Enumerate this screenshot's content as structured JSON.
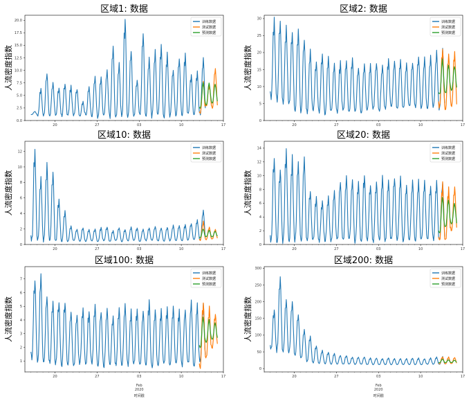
{
  "figure": {
    "ylabel": "人流密度指数",
    "x_month_label": "Feb",
    "x_year_label": "2020",
    "x_axis_label": "时间戳",
    "legend": [
      "训练数据",
      "测试数据",
      "预测数据"
    ],
    "colors": {
      "train": "#1f77b4",
      "test": "#ff7f0e",
      "pred": "#2ca02c"
    }
  },
  "chart_data": [
    {
      "type": "line",
      "title": "区域1: 数据",
      "xticks": [
        "20",
        "27",
        "03",
        "10",
        "17"
      ],
      "yticks": [
        "0.0",
        "2.5",
        "5.0",
        "7.5",
        "10.0",
        "12.5",
        "15.0",
        "17.5",
        "20.0"
      ],
      "ylim": [
        0,
        21
      ],
      "x_range_days": [
        "2020-01-15",
        "2020-02-17"
      ],
      "series": [
        {
          "name": "训练数据",
          "period": "2020-01-16 to 2020-02-13",
          "daily_peaks": [
            1.8,
            6.5,
            9.8,
            7.8,
            6.8,
            7.6,
            7.0,
            6.5,
            3.8,
            6.8,
            8.8,
            9.0,
            10.3,
            15.0,
            11.6,
            20.8,
            14.5,
            8.5,
            17.8,
            12.6,
            14.0,
            15.6,
            13.8,
            10.5,
            12.8,
            13.8,
            9.5,
            10.0,
            13.0
          ],
          "daily_troughs": [
            1.2,
            1.0,
            1.0,
            1.1,
            1.2,
            1.0,
            1.0,
            1.1,
            0.9,
            1.0,
            0.8,
            0.7,
            0.9,
            0.8,
            0.6,
            0.7,
            0.8,
            0.9,
            1.0,
            1.0,
            0.9,
            0.8,
            0.9,
            1.0,
            1.2,
            1.1,
            1.2,
            1.0,
            1.2
          ]
        },
        {
          "name": "测试数据",
          "period": "2020-02-13 to 2020-02-16",
          "daily_peaks": [
            8.0,
            7.2,
            10.8
          ],
          "daily_troughs": [
            1.5,
            2.8,
            2.5
          ]
        },
        {
          "name": "预测数据",
          "period": "2020-02-13 to 2020-02-16",
          "daily_peaks": [
            7.5,
            7.5,
            7.3
          ],
          "daily_troughs": [
            2.5,
            3.2,
            3.5
          ]
        }
      ]
    },
    {
      "type": "line",
      "title": "区域2: 数据",
      "xticks": [
        "20",
        "27",
        "03",
        "10",
        "17"
      ],
      "yticks": [
        "0",
        "5",
        "10",
        "15",
        "20",
        "25",
        "30"
      ],
      "ylim": [
        0,
        31
      ],
      "x_range_days": [
        "2020-01-15",
        "2020-02-17"
      ],
      "series": [
        {
          "name": "训练数据",
          "period": "2020-01-16 to 2020-02-13",
          "daily_peaks": [
            30.5,
            29.5,
            28.0,
            26.5,
            27.0,
            25.0,
            21.0,
            17.5,
            20.0,
            19.0,
            17.0,
            17.5,
            18.0,
            18.5,
            16.0,
            17.5,
            17.0,
            17.5,
            16.5,
            18.5,
            18.0,
            18.0,
            17.0,
            17.5,
            19.5,
            18.5,
            19.5,
            20.5,
            21.0
          ],
          "daily_troughs": [
            6.5,
            6.0,
            5.5,
            4.5,
            3.5,
            3.0,
            2.5,
            3.0,
            2.5,
            2.0,
            2.5,
            2.5,
            3.0,
            2.5,
            3.0,
            2.5,
            3.0,
            3.5,
            3.0,
            3.5,
            4.0,
            3.5,
            3.5,
            4.0,
            4.0,
            3.5,
            4.0,
            4.0,
            3.5
          ]
        },
        {
          "name": "测试数据",
          "period": "2020-02-13 to 2020-02-16",
          "daily_peaks": [
            21.5,
            20.0,
            20.5
          ],
          "daily_troughs": [
            4.0,
            3.5,
            4.0
          ]
        },
        {
          "name": "预测数据",
          "period": "2020-02-13 to 2020-02-16",
          "daily_peaks": [
            18.0,
            16.5,
            16.0
          ],
          "daily_troughs": [
            7.5,
            8.0,
            9.0
          ]
        }
      ]
    },
    {
      "type": "line",
      "title": "区域10: 数据",
      "xticks": [
        "20",
        "27",
        "03",
        "10",
        "17"
      ],
      "yticks": [
        "0",
        "2",
        "4",
        "6",
        "8",
        "10",
        "12"
      ],
      "ylim": [
        0,
        13.3
      ],
      "x_range_days": [
        "2020-01-15",
        "2020-02-17"
      ],
      "series": [
        {
          "name": "训练数据",
          "period": "2020-01-16 to 2020-02-13",
          "daily_peaks": [
            12.8,
            9.0,
            10.5,
            9.5,
            6.0,
            4.5,
            2.5,
            2.0,
            2.2,
            2.0,
            2.0,
            2.2,
            2.3,
            1.8,
            2.2,
            2.0,
            2.3,
            2.2,
            2.0,
            2.2,
            2.4,
            2.2,
            2.3,
            2.5,
            2.5,
            2.6,
            2.8,
            3.2,
            4.5
          ],
          "daily_troughs": [
            0.6,
            0.5,
            0.6,
            0.5,
            0.5,
            0.4,
            0.4,
            0.5,
            0.4,
            0.4,
            0.5,
            0.4,
            0.5,
            0.4,
            0.5,
            0.4,
            0.5,
            0.5,
            0.4,
            0.5,
            0.5,
            0.5,
            0.4,
            0.5,
            0.5,
            0.5,
            0.6,
            0.6,
            0.6
          ]
        },
        {
          "name": "测试数据",
          "period": "2020-02-13 to 2020-02-16",
          "daily_peaks": [
            3.0,
            2.3,
            2.0
          ],
          "daily_troughs": [
            0.5,
            0.6,
            0.7
          ]
        },
        {
          "name": "预测数据",
          "period": "2020-02-13 to 2020-02-16",
          "daily_peaks": [
            2.0,
            1.8,
            1.7
          ],
          "daily_troughs": [
            0.9,
            1.0,
            1.0
          ]
        }
      ]
    },
    {
      "type": "line",
      "title": "区域20: 数据",
      "xticks": [
        "20",
        "27",
        "03",
        "10",
        "17"
      ],
      "yticks": [
        "0",
        "2",
        "4",
        "6",
        "8",
        "10",
        "12",
        "14"
      ],
      "ylim": [
        0,
        15
      ],
      "x_range_days": [
        "2020-01-15",
        "2020-02-17"
      ],
      "series": [
        {
          "name": "训练数据",
          "period": "2020-01-16 to 2020-02-13",
          "daily_peaks": [
            13.0,
            11.5,
            14.5,
            13.0,
            12.5,
            13.0,
            8.0,
            7.0,
            6.5,
            7.0,
            8.0,
            9.5,
            10.0,
            10.0,
            9.5,
            10.5,
            9.0,
            9.5,
            10.0,
            9.5,
            10.0,
            10.0,
            9.0,
            9.5,
            9.5,
            9.5,
            9.0,
            9.5,
            9.5
          ],
          "daily_troughs": [
            0.7,
            0.5,
            0.6,
            0.5,
            0.6,
            0.5,
            0.5,
            0.6,
            0.5,
            0.6,
            0.5,
            0.6,
            0.5,
            0.6,
            0.5,
            0.5,
            0.6,
            0.5,
            0.6,
            0.6,
            0.6,
            0.6,
            0.5,
            0.6,
            0.6,
            0.6,
            0.6,
            0.7,
            0.7
          ]
        },
        {
          "name": "测试数据",
          "period": "2020-02-13 to 2020-02-16",
          "daily_peaks": [
            9.0,
            8.5,
            8.5
          ],
          "daily_troughs": [
            0.6,
            0.5,
            2.0
          ]
        },
        {
          "name": "预测数据",
          "period": "2020-02-13 to 2020-02-16",
          "daily_peaks": [
            7.0,
            6.5,
            6.0
          ],
          "daily_troughs": [
            1.5,
            2.5,
            3.0
          ]
        }
      ]
    },
    {
      "type": "line",
      "title": "区域100: 数据",
      "xticks": [
        "20",
        "27",
        "03",
        "10",
        "17"
      ],
      "yticks": [
        "1",
        "2",
        "3",
        "4",
        "5",
        "6",
        "7"
      ],
      "ylim": [
        0.2,
        7.9
      ],
      "x_range_days": [
        "2020-01-15",
        "2020-02-17"
      ],
      "series": [
        {
          "name": "训练数据",
          "period": "2020-01-16 to 2020-02-13",
          "daily_peaks": [
            7.2,
            7.5,
            6.0,
            5.5,
            5.5,
            5.5,
            4.8,
            4.5,
            5.0,
            4.8,
            5.2,
            4.8,
            5.0,
            4.5,
            5.0,
            5.2,
            4.8,
            5.0,
            4.8,
            5.5,
            5.0,
            4.8,
            5.0,
            5.2,
            4.8,
            5.0,
            5.5,
            5.2,
            5.3
          ],
          "daily_troughs": [
            1.2,
            0.9,
            0.8,
            0.9,
            0.8,
            0.7,
            0.8,
            0.7,
            0.8,
            0.7,
            0.8,
            0.7,
            0.6,
            0.8,
            0.7,
            0.8,
            0.7,
            0.8,
            0.7,
            0.8,
            0.5,
            0.7,
            0.8,
            0.7,
            0.8,
            0.7,
            0.8,
            0.7,
            1.0
          ]
        },
        {
          "name": "测试数据",
          "period": "2020-02-13 to 2020-02-16",
          "daily_peaks": [
            5.5,
            5.0,
            4.5
          ],
          "daily_troughs": [
            0.6,
            1.2,
            2.0
          ]
        },
        {
          "name": "预测数据",
          "period": "2020-02-13 to 2020-02-16",
          "daily_peaks": [
            4.2,
            4.0,
            3.8
          ],
          "daily_troughs": [
            2.0,
            2.4,
            2.6
          ]
        }
      ]
    },
    {
      "type": "line",
      "title": "区域200: 数据",
      "xticks": [
        "20",
        "27",
        "03",
        "10",
        "17"
      ],
      "yticks": [
        "0",
        "50",
        "100",
        "150",
        "200",
        "250",
        "300"
      ],
      "ylim": [
        -10,
        305
      ],
      "x_range_days": [
        "2020-01-15",
        "2020-02-17"
      ],
      "series": [
        {
          "name": "训练数据",
          "period": "2020-01-16 to 2020-02-13",
          "daily_peaks": [
            180,
            285,
            210,
            205,
            165,
            120,
            100,
            70,
            55,
            50,
            45,
            40,
            40,
            35,
            35,
            35,
            32,
            32,
            30,
            32,
            30,
            30,
            30,
            32,
            32,
            30,
            32,
            35,
            36
          ],
          "daily_troughs": [
            60,
            55,
            50,
            50,
            40,
            30,
            22,
            18,
            16,
            15,
            14,
            14,
            13,
            13,
            13,
            13,
            12,
            12,
            12,
            12,
            12,
            12,
            12,
            12,
            12,
            12,
            13,
            13,
            13
          ]
        },
        {
          "name": "测试数据",
          "period": "2020-02-13 to 2020-02-16",
          "daily_peaks": [
            36,
            35,
            34
          ],
          "daily_troughs": [
            14,
            14,
            15
          ]
        },
        {
          "name": "预测数据",
          "period": "2020-02-13 to 2020-02-16",
          "daily_peaks": [
            28,
            26,
            25
          ],
          "daily_troughs": [
            18,
            18,
            18
          ]
        }
      ]
    }
  ]
}
